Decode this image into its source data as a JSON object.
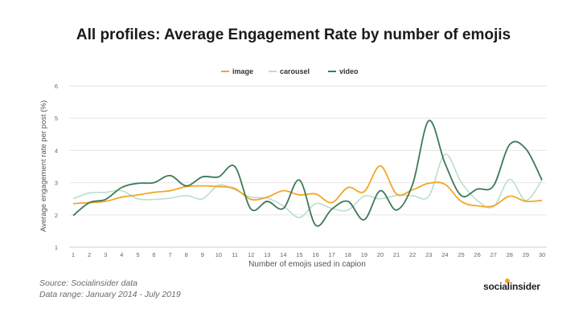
{
  "page": {
    "title": "All profiles: Average Engagement Rate by number of emojis",
    "source": "Source: Socialinsider data",
    "range": "Data range: January 2014 - July 2019",
    "brand": "socialinsider"
  },
  "chart_data": {
    "type": "line",
    "smooth": true,
    "title": "All profiles: Average Engagement Rate by number of emojis",
    "xlabel": "Number of emojis used in capion",
    "ylabel": "Average engagement rate per post (%)",
    "ylim": [
      1,
      6
    ],
    "yticks": [
      1,
      2,
      3,
      4,
      5,
      6
    ],
    "grid": "horizontal",
    "legend_position": "top-center",
    "x": [
      1,
      2,
      3,
      4,
      5,
      6,
      7,
      8,
      9,
      10,
      11,
      12,
      13,
      14,
      15,
      16,
      17,
      18,
      19,
      20,
      21,
      22,
      23,
      24,
      25,
      26,
      27,
      28,
      29,
      30
    ],
    "series": [
      {
        "name": "image",
        "color": "#f5a623",
        "values": [
          2.35,
          2.38,
          2.42,
          2.55,
          2.62,
          2.7,
          2.75,
          2.88,
          2.9,
          2.88,
          2.82,
          2.48,
          2.55,
          2.75,
          2.62,
          2.65,
          2.38,
          2.85,
          2.72,
          3.52,
          2.65,
          2.78,
          2.98,
          2.95,
          2.42,
          2.28,
          2.28,
          2.58,
          2.42,
          2.45
        ]
      },
      {
        "name": "carousel",
        "color": "#b8e0cc",
        "values": [
          2.5,
          2.68,
          2.7,
          2.75,
          2.5,
          2.48,
          2.52,
          2.6,
          2.5,
          2.92,
          2.78,
          2.55,
          2.52,
          2.28,
          1.92,
          2.35,
          2.2,
          2.15,
          2.58,
          2.5,
          2.6,
          2.6,
          2.58,
          3.88,
          3.02,
          2.45,
          2.25,
          3.1,
          2.45,
          3.08
        ]
      },
      {
        "name": "video",
        "color": "#3d7a55",
        "values": [
          1.98,
          2.38,
          2.48,
          2.85,
          2.98,
          3.0,
          3.22,
          2.9,
          3.18,
          3.18,
          3.5,
          2.18,
          2.42,
          2.2,
          3.08,
          1.68,
          2.18,
          2.42,
          1.85,
          2.75,
          2.15,
          2.95,
          4.92,
          3.6,
          2.6,
          2.8,
          2.9,
          4.18,
          4.05,
          3.08
        ]
      }
    ]
  }
}
